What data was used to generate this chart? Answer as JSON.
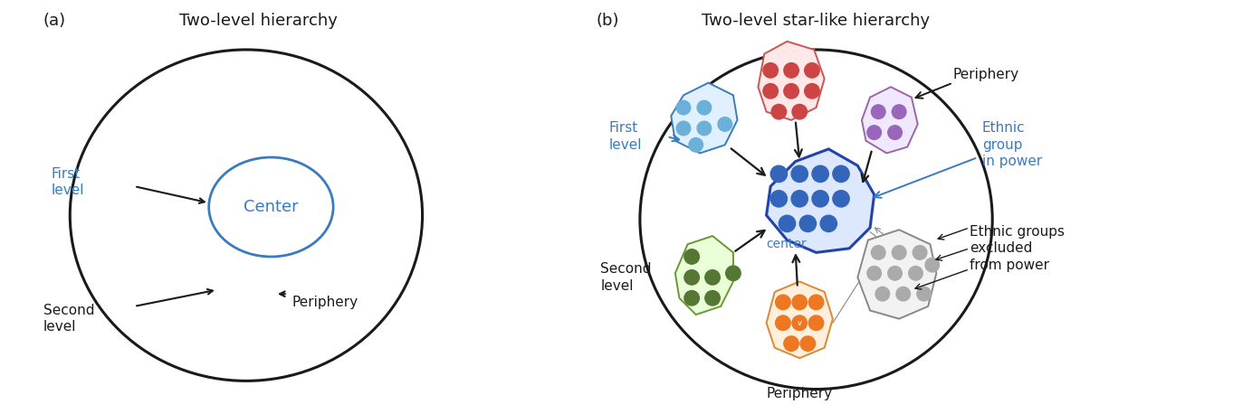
{
  "fig_width": 13.83,
  "fig_height": 4.58,
  "bg_color": "#ffffff",
  "blue_color": "#3a7bbf",
  "black_color": "#1a1a1a",
  "label_a": "(a)",
  "label_b": "(b)",
  "title_a": "Two-level hierarchy",
  "title_b": "Two-level star-like hierarchy",
  "center_label": "Center",
  "periphery_label_a": "Periphery",
  "first_level_label_a": "First\nlevel",
  "second_level_label_a": "Second\nlevel",
  "center_label_b": "center",
  "periphery_label_b1": "Periphery",
  "periphery_label_b2": "Periphery",
  "ethnic_power_label": "Ethnic\ngroup\nin power",
  "ethnic_excluded_label": "Ethnic groups\nexcluded\nfrom power",
  "first_level_b": "First\nlevel",
  "second_level_b": "Second\nlevel",
  "dot_colors": {
    "blue_light": "#6ab0d8",
    "blue_dark": "#3366bb",
    "red": "#cc4444",
    "purple": "#9966bb",
    "green": "#557733",
    "orange": "#ee7722",
    "gray": "#aaaaaa"
  }
}
